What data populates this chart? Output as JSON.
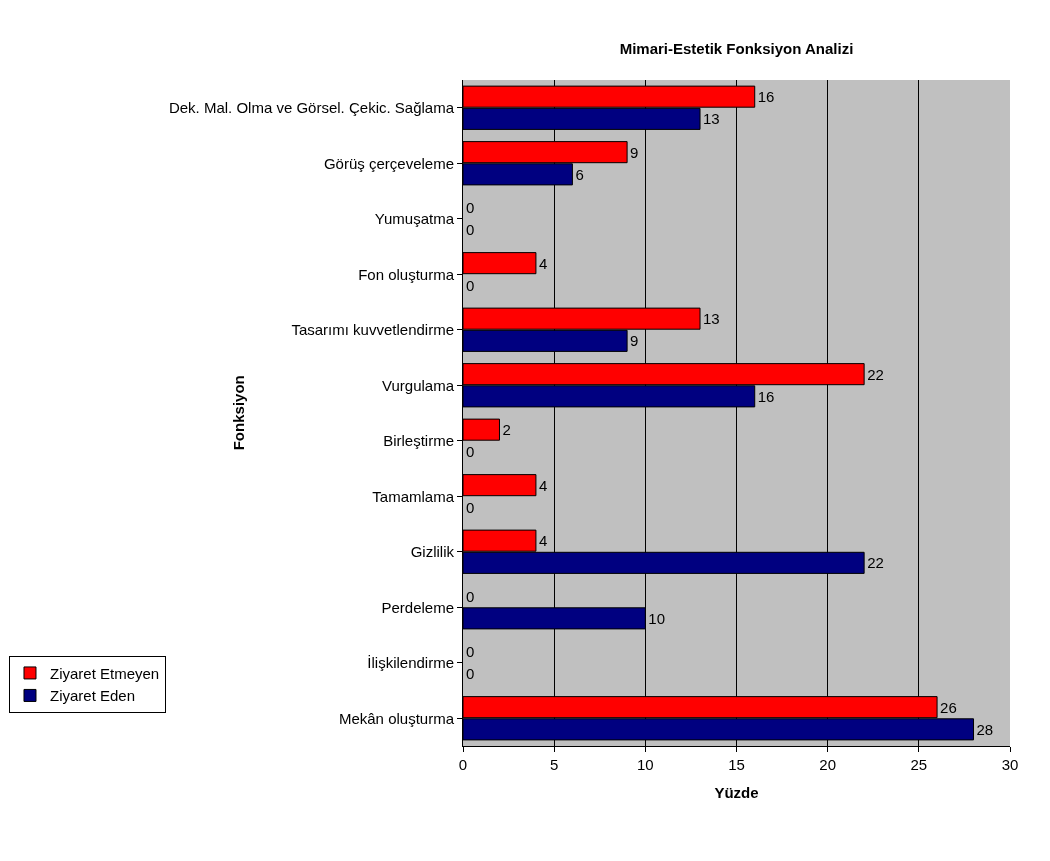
{
  "chart_data": {
    "type": "bar",
    "orientation": "horizontal",
    "title": "Mimari-Estetik Fonksiyon Analizi",
    "xlabel": "Yüzde",
    "ylabel": "Fonksiyon",
    "categories": [
      "Dek. Mal. Olma ve Görsel. Çekic. Sağlama",
      "Görüş çerçeveleme",
      "Yumuşatma",
      "Fon oluşturma",
      "Tasarımı kuvvetlendirme",
      "Vurgulama",
      "Birleştirme",
      "Tamamlama",
      "Gizlilik",
      "Perdeleme",
      "İlişkilendirme",
      "Mekân oluşturma"
    ],
    "series": [
      {
        "name": "Ziyaret Etmeyen",
        "color": "#ff0000",
        "values": [
          16,
          9,
          0,
          4,
          13,
          22,
          2,
          4,
          4,
          0,
          0,
          26
        ]
      },
      {
        "name": "Ziyaret Eden",
        "color": "#000080",
        "values": [
          13,
          6,
          0,
          0,
          9,
          16,
          0,
          0,
          22,
          10,
          0,
          28
        ]
      }
    ],
    "xlim": [
      0,
      30
    ],
    "xticks": [
      0,
      5,
      10,
      15,
      20,
      25,
      30
    ],
    "grid": "x",
    "legend": "bottom left",
    "data_labels": true
  }
}
